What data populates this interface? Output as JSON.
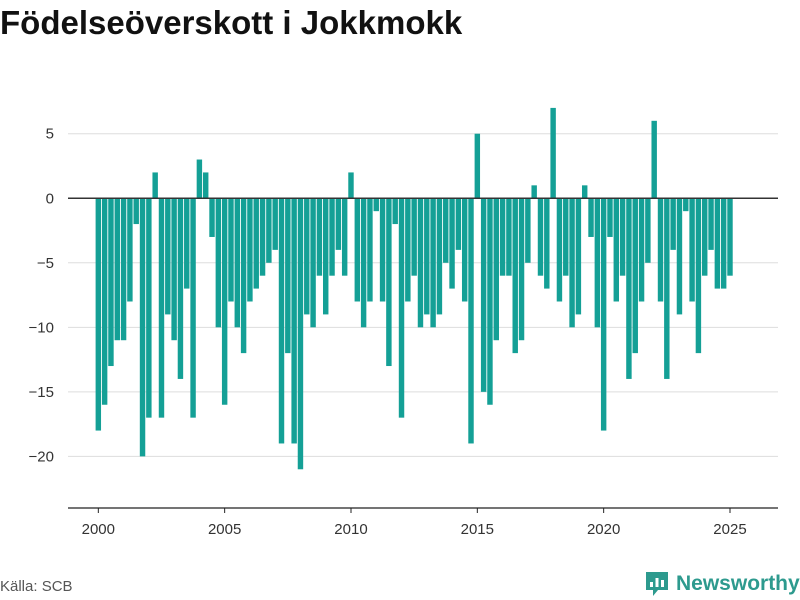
{
  "title": "Födelseöverskott i Jokkmokk",
  "source": "Källa: SCB",
  "brand": {
    "name": "Newsworthy",
    "icon": "newsworthy-logo-icon",
    "color": "#2d9a8e"
  },
  "chart_data": {
    "type": "bar",
    "bar_color": "#14a096",
    "zero_line_color": "#333333",
    "grid": true,
    "xlim": [
      1998.8,
      2026.9
    ],
    "ylim": [
      -24,
      8
    ],
    "yticks": [
      5,
      0,
      -5,
      -10,
      -15,
      -20
    ],
    "ytick_labels": [
      "5",
      "0",
      "−5",
      "−10",
      "−15",
      "−20"
    ],
    "xticks": [
      2000,
      2005,
      2010,
      2015,
      2020,
      2025
    ],
    "xtick_labels": [
      "2000",
      "2005",
      "2010",
      "2015",
      "2020",
      "2025"
    ],
    "x_unit": "quarter",
    "start": "2000 Q1",
    "values": [
      -18,
      -16,
      -13,
      -11,
      -11,
      -8,
      -2,
      -20,
      -17,
      2,
      -17,
      -9,
      -11,
      -14,
      -7,
      -17,
      3,
      2,
      -3,
      -10,
      -16,
      -8,
      -10,
      -12,
      -8,
      -7,
      -6,
      -5,
      -4,
      -19,
      -12,
      -19,
      -21,
      -9,
      -10,
      -6,
      -9,
      -6,
      -4,
      -6,
      2,
      -8,
      -10,
      -8,
      -1,
      -8,
      -13,
      -2,
      -17,
      -8,
      -6,
      -10,
      -9,
      -10,
      -9,
      -5,
      -7,
      -4,
      -8,
      -19,
      5,
      -15,
      -16,
      -11,
      -6,
      -6,
      -12,
      -11,
      -5,
      1,
      -6,
      -7,
      7,
      -8,
      -6,
      -10,
      -9,
      1,
      -3,
      -10,
      -18,
      -3,
      -8,
      -6,
      -14,
      -12,
      -8,
      -5,
      6,
      -8,
      -14,
      -4,
      -9,
      -1,
      -8,
      -12,
      -6,
      -4,
      -7,
      -7,
      -6
    ]
  }
}
